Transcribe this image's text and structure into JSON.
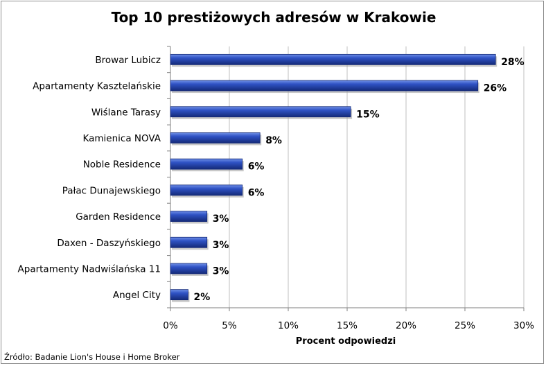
{
  "chart_data": {
    "type": "bar",
    "orientation": "horizontal",
    "title": "Top 10 prestiżowych adresów w Krakowie",
    "xlabel": "Procent odpowiedzi",
    "ylabel": "",
    "categories": [
      "Browar Lubicz",
      "Apartamenty Kasztelańskie",
      "Wiślane Tarasy",
      "Kamienica NOVA",
      "Noble Residence",
      "Pałac Dunajewskiego",
      "Garden Residence",
      "Daxen - Daszyńskiego",
      "Apartamenty Nadwiślańska 11",
      "Angel City"
    ],
    "values": [
      27.6,
      26.1,
      15.3,
      7.6,
      6.1,
      6.1,
      3.1,
      3.1,
      3.1,
      1.5
    ],
    "data_labels": [
      "28%",
      "26%",
      "15%",
      "8%",
      "6%",
      "6%",
      "3%",
      "3%",
      "3%",
      "2%"
    ],
    "xlim": [
      0,
      30
    ],
    "x_ticks": [
      "0%",
      "5%",
      "10%",
      "15%",
      "20%",
      "25%",
      "30%"
    ],
    "x_tick_values": [
      0,
      5,
      10,
      15,
      20,
      25,
      30
    ],
    "grid": true,
    "bar_color": "#1f3c99",
    "bar_highlight_color": "#5b7fe0"
  },
  "source_note": "Źródło: Badanie Lion's House i Home Broker"
}
